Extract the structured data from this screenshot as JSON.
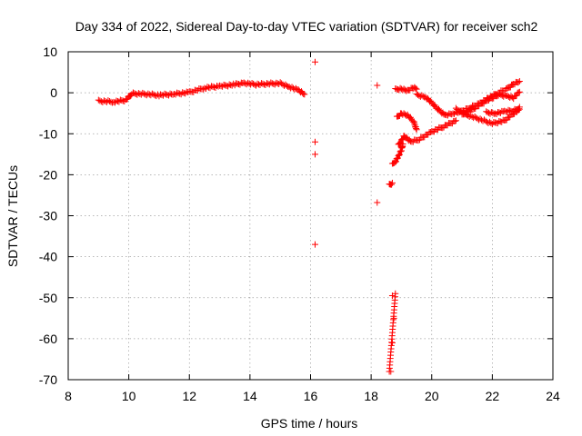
{
  "chart_data": {
    "type": "scatter",
    "title": "Day 334 of 2022, Sidereal Day-to-day VTEC variation (SDTVAR) for receiver sch2",
    "xlabel": "GPS time / hours",
    "ylabel": "SDTVAR / TECUs",
    "xlim": [
      8,
      24
    ],
    "ylim": [
      -70,
      10
    ],
    "xticks": [
      8,
      10,
      12,
      14,
      16,
      18,
      20,
      22,
      24
    ],
    "yticks": [
      10,
      0,
      -10,
      -20,
      -30,
      -40,
      -50,
      -60,
      -70
    ],
    "xtick_labels": [
      "8",
      "10",
      "12",
      "14",
      "16",
      "18",
      "20",
      "22",
      "24"
    ],
    "ytick_labels": [
      "10",
      "0",
      "-10",
      "-20",
      "-30",
      "-40",
      "-50",
      "-60",
      "-70"
    ],
    "grid": true,
    "marker": "+",
    "color": "#ff0000",
    "series": [
      {
        "name": "SDTVAR",
        "segments": [
          {
            "x": [
              9.0,
              9.5,
              9.9,
              10.1,
              10.5,
              11.0,
              11.5,
              12.0,
              12.5,
              13.0,
              13.5,
              13.8,
              14.2,
              14.6,
              15.0,
              15.3,
              15.6,
              15.8
            ],
            "y": [
              -2.0,
              -2.2,
              -1.8,
              -0.2,
              -0.3,
              -0.6,
              -0.3,
              0.1,
              1.2,
              1.6,
              2.0,
              2.4,
              2.0,
              2.2,
              2.3,
              1.5,
              0.6,
              -0.4
            ]
          },
          {
            "x": [
              18.6,
              18.65,
              18.7
            ],
            "y": [
              -22.5,
              -22.3,
              -22.0
            ]
          },
          {
            "x": [
              18.7,
              18.8,
              18.9,
              19.0,
              19.05
            ],
            "y": [
              -17.5,
              -16.8,
              -15.5,
              -14.0,
              -12.5
            ]
          },
          {
            "x": [
              18.9,
              19.1,
              19.3,
              19.6,
              20.0,
              20.4,
              20.8
            ],
            "y": [
              -12.8,
              -10.5,
              -12.0,
              -11.3,
              -9.5,
              -8.2,
              -6.8
            ]
          },
          {
            "x": [
              18.85,
              19.0,
              19.2,
              19.4,
              19.5
            ],
            "y": [
              -6.0,
              -5.0,
              -5.5,
              -7.0,
              -9.0
            ]
          },
          {
            "x": [
              18.8,
              19.0,
              19.2,
              19.4,
              19.5
            ],
            "y": [
              0.8,
              1.0,
              0.5,
              1.2,
              0.9
            ]
          },
          {
            "x": [
              19.5,
              19.8,
              20.0,
              20.2,
              20.4
            ],
            "y": [
              -0.5,
              -1.0,
              -2.5,
              -4.0,
              -5.2
            ]
          },
          {
            "x": [
              20.4,
              20.7,
              21.0,
              21.3,
              21.6,
              21.9,
              22.2,
              22.5,
              22.7,
              22.9
            ],
            "y": [
              -5.5,
              -5.0,
              -4.5,
              -3.5,
              -2.5,
              -1.2,
              0.0,
              1.0,
              2.2,
              2.8
            ]
          },
          {
            "x": [
              20.8,
              21.2,
              21.6,
              22.0,
              22.4,
              22.8,
              22.9
            ],
            "y": [
              -4.0,
              -5.5,
              -6.5,
              -7.5,
              -6.8,
              -4.5,
              -3.5
            ]
          },
          {
            "x": [
              21.0,
              21.4,
              21.8,
              22.2,
              22.5,
              22.7,
              22.9
            ],
            "y": [
              -5.5,
              -3.8,
              -2.0,
              -0.5,
              -0.8,
              -1.2,
              0.2
            ]
          },
          {
            "x": [
              21.8,
              22.1,
              22.4,
              22.7,
              22.9
            ],
            "y": [
              -4.8,
              -5.0,
              -4.6,
              -4.3,
              -4.0
            ]
          }
        ],
        "outliers": {
          "x": [
            16.15,
            16.15,
            16.15,
            16.15,
            18.2,
            18.2,
            18.7,
            18.75,
            18.7,
            18.65
          ],
          "y": [
            7.5,
            -12.0,
            -15.0,
            -37.0,
            1.8,
            -26.8,
            -49.5,
            -55.0,
            -61.0,
            -68.0
          ]
        },
        "drop": {
          "x_start": 18.6,
          "x_end": 18.8,
          "y_top": -49,
          "y_bottom": -68
        }
      }
    ]
  }
}
